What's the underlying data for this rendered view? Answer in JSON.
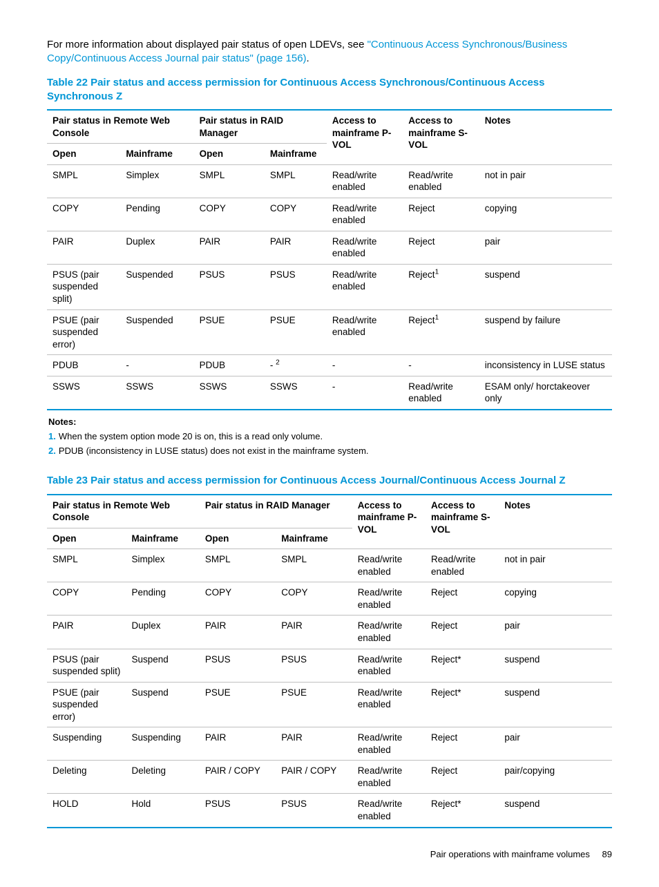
{
  "colors": {
    "accent": "#0096d6",
    "border": "#bfbfbf",
    "text": "#000000",
    "background": "#ffffff"
  },
  "intro": {
    "pre": "For more information about displayed pair status of open LDEVs, see ",
    "link": "\"Continuous Access Synchronous/Business Copy/Continuous Access Journal pair status\" (page 156)",
    "post": "."
  },
  "table22": {
    "title": "Table 22 Pair status and access permission for Continuous Access Synchronous/Continuous Access Synchronous Z",
    "headers": {
      "remote_web": "Pair status in Remote Web Console",
      "raid_mgr": "Pair status in RAID Manager",
      "pvol": "Access to mainframe P-VOL",
      "svol": "Access to mainframe S-VOL",
      "notes": "Notes",
      "open": "Open",
      "mainframe": "Mainframe"
    },
    "col_widths_pct": [
      13.0,
      13.0,
      12.5,
      11.0,
      13.5,
      13.5,
      23.5
    ],
    "rows": [
      [
        "SMPL",
        "Simplex",
        "SMPL",
        "SMPL",
        "Read/write enabled",
        "Read/write enabled",
        "not in pair"
      ],
      [
        "COPY",
        "Pending",
        "COPY",
        "COPY",
        "Read/write enabled",
        "Reject",
        "copying"
      ],
      [
        "PAIR",
        "Duplex",
        "PAIR",
        "PAIR",
        "Read/write enabled",
        "Reject",
        "pair"
      ],
      [
        "PSUS (pair suspended split)",
        "Suspended",
        "PSUS",
        "PSUS",
        "Read/write enabled",
        "Reject<sup>1</sup>",
        "suspend"
      ],
      [
        "PSUE (pair suspended error)",
        "Suspended",
        "PSUE",
        "PSUE",
        "Read/write enabled",
        "Reject<sup>1</sup>",
        "suspend by failure"
      ],
      [
        "PDUB",
        "-",
        "PDUB",
        "- <sup>2</sup>",
        "-",
        "-",
        "inconsistency in LUSE status"
      ],
      [
        "SSWS",
        "SSWS",
        "SSWS",
        "SSWS",
        "-",
        "Read/write enabled",
        "ESAM only/ horctakeover only"
      ]
    ],
    "notes_heading": "Notes:",
    "notes": [
      {
        "n": "1.",
        "t": "When the system option mode 20 is on, this is a read only volume."
      },
      {
        "n": "2.",
        "t": "PDUB (inconsistency in LUSE status) does not exist in the mainframe system."
      }
    ]
  },
  "table23": {
    "title": "Table 23 Pair status and access permission for Continuous Access Journal/Continuous Access Journal Z",
    "headers": {
      "remote_web": "Pair status in Remote Web Console",
      "raid_mgr": "Pair status in RAID Manager",
      "pvol": "Access to mainframe P-VOL",
      "svol": "Access to mainframe S-VOL",
      "notes": "Notes",
      "open": "Open",
      "mainframe": "Mainframe"
    },
    "col_widths_pct": [
      14.0,
      13.0,
      13.5,
      13.5,
      13.0,
      13.0,
      20.0
    ],
    "rows": [
      [
        "SMPL",
        "Simplex",
        "SMPL",
        "SMPL",
        "Read/write enabled",
        "Read/write enabled",
        "not in pair"
      ],
      [
        "COPY",
        "Pending",
        "COPY",
        "COPY",
        "Read/write enabled",
        "Reject",
        "copying"
      ],
      [
        "PAIR",
        "Duplex",
        "PAIR",
        "PAIR",
        "Read/write enabled",
        "Reject",
        "pair"
      ],
      [
        "PSUS (pair suspended split)",
        "Suspend",
        "PSUS",
        "PSUS",
        "Read/write enabled",
        "Reject*",
        "suspend"
      ],
      [
        "PSUE (pair suspended error)",
        "Suspend",
        "PSUE",
        "PSUE",
        "Read/write enabled",
        "Reject*",
        "suspend"
      ],
      [
        "Suspending",
        "Suspending",
        "PAIR",
        "PAIR",
        "Read/write enabled",
        "Reject",
        "pair"
      ],
      [
        "Deleting",
        "Deleting",
        "PAIR / COPY",
        "PAIR / COPY",
        "Read/write enabled",
        "Reject",
        "pair/copying"
      ],
      [
        "HOLD",
        "Hold",
        "PSUS",
        "PSUS",
        "Read/write enabled",
        "Reject*",
        "suspend"
      ]
    ]
  },
  "footer": {
    "section": "Pair operations with mainframe volumes",
    "page": "89"
  }
}
